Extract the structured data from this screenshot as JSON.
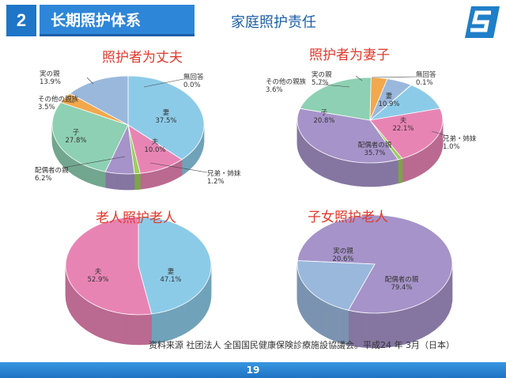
{
  "header": {
    "section_number": "2",
    "section_title": "长期照护体系",
    "subtitle": "家庭照护责任",
    "logo_icon": "s-logo-icon"
  },
  "chart_data": [
    {
      "type": "pie",
      "title": "照护者为丈夫",
      "slices": [
        {
          "label": "無回答",
          "value": 0.0,
          "text": "0.0%",
          "color": "#9fcbe8"
        },
        {
          "label": "妻",
          "value": 37.5,
          "text": "37.5%",
          "color": "#8ccbe8"
        },
        {
          "label": "夫",
          "value": 10.0,
          "text": "10.0%",
          "color": "#e884b4"
        },
        {
          "label": "兄弟・姉妹",
          "value": 1.2,
          "text": "1.2%",
          "color": "#9ccf5c"
        },
        {
          "label": "配偶者の親",
          "value": 6.2,
          "text": "6.2%",
          "color": "#a693c9"
        },
        {
          "label": "子",
          "value": 27.8,
          "text": "27.8%",
          "color": "#8ed0b3"
        },
        {
          "label": "その他の親族",
          "value": 3.5,
          "text": "3.5%",
          "color": "#f2a84c"
        },
        {
          "label": "実の親",
          "value": 13.9,
          "text": "13.9%",
          "color": "#9ab8dc"
        }
      ]
    },
    {
      "type": "pie",
      "title": "照护者为妻子",
      "slices": [
        {
          "label": "無回答",
          "value": 0.1,
          "text": "0.1%",
          "color": "#9fcbe8"
        },
        {
          "label": "妻",
          "value": 10.9,
          "text": "10.9%",
          "color": "#8ccbe8"
        },
        {
          "label": "夫",
          "value": 22.1,
          "text": "22.1%",
          "color": "#e884b4"
        },
        {
          "label": "兄弟・姉妹",
          "value": 1.0,
          "text": "1.0%",
          "color": "#9ccf5c"
        },
        {
          "label": "配偶者の親",
          "value": 35.7,
          "text": "35.7%",
          "color": "#a693c9"
        },
        {
          "label": "子",
          "value": 20.8,
          "text": "20.8%",
          "color": "#8ed0b3"
        },
        {
          "label": "その他の親族",
          "value": 3.6,
          "text": "3.6%",
          "color": "#f2a84c"
        },
        {
          "label": "実の親",
          "value": 5.7,
          "text": "5.7%",
          "color": "#9ab8dc"
        }
      ]
    },
    {
      "type": "pie",
      "title": "老人照护老人",
      "slices": [
        {
          "label": "妻",
          "value": 47.1,
          "text": "47.1%",
          "color": "#8ccbe8"
        },
        {
          "label": "夫",
          "value": 52.9,
          "text": "52.9%",
          "color": "#e884b4"
        }
      ]
    },
    {
      "type": "pie",
      "title": "子女照护老人",
      "slices": [
        {
          "label": "配偶者の親",
          "value": 79.4,
          "text": "79.4%",
          "color": "#a693c9"
        },
        {
          "label": "実の親",
          "value": 20.6,
          "text": "20.6%",
          "color": "#9ab8dc"
        }
      ]
    }
  ],
  "source_note": "资料来源  社团法人  全国国民健康保険診療施設協議会。平成24 年 3月（日本）",
  "footer": {
    "page_number": "19"
  }
}
